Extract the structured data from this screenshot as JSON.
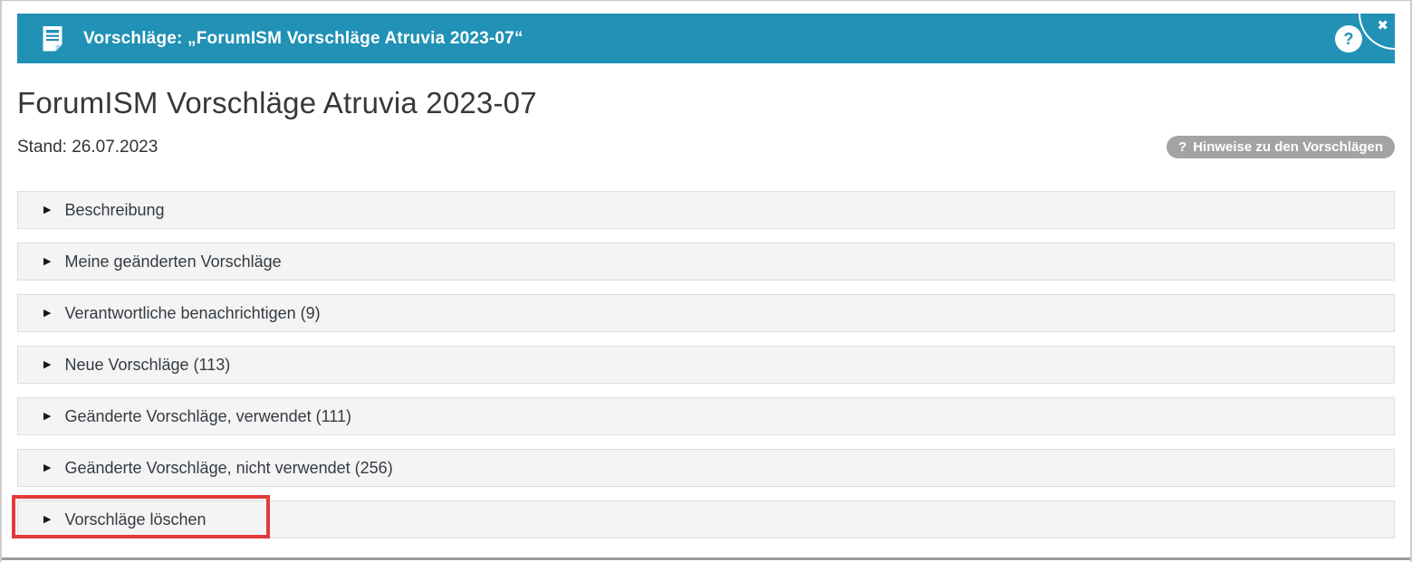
{
  "header": {
    "title": "Vorschläge: „ForumISM Vorschläge Atruvia 2023-07“",
    "help_icon": "?",
    "close_icon": "✖"
  },
  "page": {
    "title": "ForumISM Vorschläge Atruvia 2023-07",
    "stand_text": "Stand: 26.07.2023",
    "hints_button": {
      "icon": "?",
      "label": "Hinweise zu den Vorschlägen"
    }
  },
  "accordion": {
    "expand_icon": "▶",
    "items": [
      {
        "label": "Beschreibung",
        "highlighted": false
      },
      {
        "label": "Meine geänderten Vorschläge",
        "highlighted": false
      },
      {
        "label": "Verantwortliche benachrichtigen (9)",
        "highlighted": false
      },
      {
        "label": "Neue Vorschläge (113)",
        "highlighted": false
      },
      {
        "label": "Geänderte Vorschläge, verwendet (111)",
        "highlighted": false
      },
      {
        "label": "Geänderte Vorschläge, nicht verwendet (256)",
        "highlighted": false
      },
      {
        "label": "Vorschläge löschen",
        "highlighted": true
      }
    ]
  },
  "colors": {
    "header_bg": "#2191b5",
    "accordion_bg": "#f4f4f4",
    "pill_bg": "#a3a3a3",
    "highlight_border": "#e23a3a",
    "frame_bottom_bar": "#9c9c9c"
  }
}
